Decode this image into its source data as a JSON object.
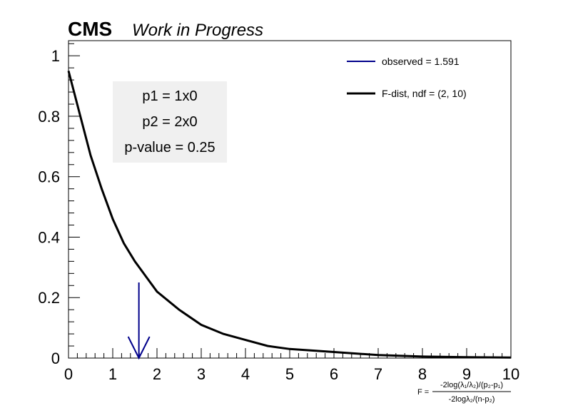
{
  "header": {
    "experiment": "CMS",
    "status": "Work in Progress"
  },
  "info_box": {
    "line1": "p1 = 1x0",
    "line2": "p2 = 2x0",
    "line3": "p-value = 0.25",
    "background": "#f0f0f0"
  },
  "legend": {
    "observed_label": "observed = 1.591",
    "fdist_label": "F-dist, ndf = (2, 10)"
  },
  "xlabel": {
    "prefix": "F = ",
    "numerator": "-2log(λ₁/λ₂)/(p₂-p₁)",
    "denominator": "-2logλ₂/(n-p₂)"
  },
  "chart_data": {
    "type": "line",
    "xlim": [
      0,
      10
    ],
    "ylim": [
      0,
      1.05
    ],
    "x_ticks": [
      0,
      1,
      2,
      3,
      4,
      5,
      6,
      7,
      8,
      9,
      10
    ],
    "y_ticks": [
      0,
      0.2,
      0.4,
      0.6,
      0.8,
      1
    ],
    "x_tick_labels": [
      "0",
      "1",
      "2",
      "3",
      "4",
      "5",
      "6",
      "7",
      "8",
      "9",
      "10"
    ],
    "y_tick_labels": [
      "0",
      "0.2",
      "0.4",
      "0.6",
      "0.8",
      "1"
    ],
    "grid": false,
    "legend_position": "top-right",
    "series": [
      {
        "name": "F-dist, ndf = (2, 10)",
        "color": "#000000",
        "x": [
          0,
          0.25,
          0.5,
          0.75,
          1,
          1.25,
          1.5,
          1.75,
          2,
          2.5,
          3,
          3.5,
          4,
          4.5,
          5,
          6,
          7,
          8,
          9,
          10
        ],
        "y": [
          0.95,
          0.81,
          0.67,
          0.56,
          0.46,
          0.38,
          0.32,
          0.27,
          0.22,
          0.16,
          0.11,
          0.08,
          0.06,
          0.04,
          0.03,
          0.02,
          0.01,
          0.005,
          0.003,
          0.002
        ]
      }
    ],
    "observed": {
      "name": "observed = 1.591",
      "x": 1.591,
      "y_top": 0.25,
      "color": "#00008b"
    }
  }
}
